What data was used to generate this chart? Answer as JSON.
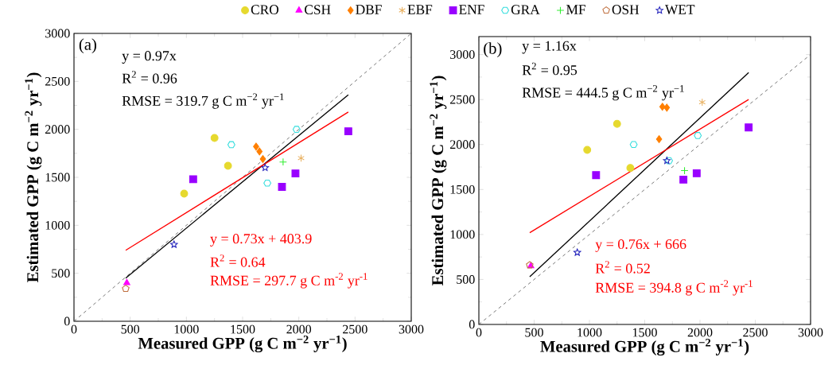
{
  "chart_data": [
    {
      "type": "scatter",
      "xlabel": "Measured GPP  (g C m$^{−2}$ yr$^{−1}$)",
      "ylabel": "Estimated GPP  (g C m$^{−2}$ yr$^{−1}$)",
      "xlim": [
        0,
        3000
      ],
      "ylim": [
        0,
        3000
      ],
      "xticks": [
        0,
        500,
        1000,
        1500,
        2000,
        2500,
        3000
      ],
      "yticks": [
        0,
        500,
        1000,
        1500,
        2000,
        2500,
        3000
      ],
      "legend": "top",
      "annotations": [
        "(a)",
        "y = 0.97x",
        "R$^{2}$ = 0.96",
        "RMSE = 319.7 g C m$^{−2}$ yr$^{−1}$",
        "y = 0.73x + 403.9",
        "R$^{2}$ = 0.64",
        "RMSE = 297.7 g C m$^{-2}$ yr$^{-1}$"
      ],
      "series": [
        {
          "name": "CRO",
          "color": "#e6d92e",
          "marker": "circle",
          "x": [
            1250,
            1370,
            980
          ],
          "values": [
            1910,
            1620,
            1330
          ]
        },
        {
          "name": "CSH",
          "color": "#ff00ff",
          "marker": "triangle",
          "x": [
            470
          ],
          "values": [
            400
          ]
        },
        {
          "name": "DBF",
          "color": "#ff7f00",
          "marker": "diamond",
          "x": [
            1620,
            1650,
            1680
          ],
          "values": [
            1820,
            1770,
            1690
          ]
        },
        {
          "name": "EBF",
          "color": "#e8b060",
          "marker": "cross",
          "x": [
            2020
          ],
          "values": [
            1700
          ]
        },
        {
          "name": "ENF",
          "color": "#9900ff",
          "marker": "square",
          "x": [
            2440,
            1060,
            1970,
            1850
          ],
          "values": [
            1980,
            1480,
            1540,
            1400
          ]
        },
        {
          "name": "GRA",
          "color": "#33dddd",
          "x": [
            1980,
            1400,
            1720
          ],
          "values": [
            2000,
            1840,
            1440
          ]
        },
        {
          "name": "MF",
          "color": "#33ee33",
          "marker": "cross",
          "x": [
            1860
          ],
          "values": [
            1660
          ]
        },
        {
          "name": "OSH",
          "color": "#c07040",
          "x": [
            460
          ],
          "values": [
            340
          ]
        },
        {
          "name": "WET",
          "color": "#2222bb",
          "marker": "star",
          "x": [
            1700,
            890
          ],
          "values": [
            1600,
            800
          ]
        },
        {
          "type": "line",
          "color": "#555555",
          "line_style": "dashed",
          "x": [
            0,
            3000
          ],
          "values": [
            0,
            3000
          ]
        },
        {
          "type": "line",
          "color": "#000000",
          "line_style": "solid",
          "x": [
            460,
            2440
          ],
          "values": [
            450,
            2360
          ]
        },
        {
          "type": "line",
          "color": "#ff0000",
          "line_style": "solid",
          "x": [
            460,
            2440
          ],
          "values": [
            740,
            2180
          ]
        }
      ]
    },
    {
      "type": "scatter",
      "xlabel": "Measured GPP  (g C m$^{−2}$ yr$^{−1}$)",
      "ylabel": "Estimated GPP  (g C m$^{−2}$ yr$^{−1}$)",
      "xlim": [
        0,
        3000
      ],
      "ylim": [
        0,
        3200
      ],
      "xticks": [
        0,
        500,
        1000,
        1500,
        2000,
        2500,
        3000
      ],
      "yticks": [
        0,
        500,
        1000,
        1500,
        2000,
        2500,
        3000
      ],
      "annotations": [
        "(b)",
        "y = 1.16x",
        "R$^{2}$ = 0.95",
        "RMSE = 444.5 g C m$^{−2}$ yr$^{−1}$",
        "y = 0.76x + 666",
        "R$^{2}$ = 0.52",
        "RMSE = 394.8 g C m$^{-2}$ yr$^{-1}$"
      ],
      "series": [
        {
          "color": "#e6d92e",
          "marker": "circle",
          "x": [
            1250,
            1370,
            980
          ],
          "values": [
            2230,
            1740,
            1940
          ]
        },
        {
          "color": "#ff00ff",
          "marker": "triangle",
          "x": [
            470
          ],
          "values": [
            650
          ]
        },
        {
          "color": "#ff7f00",
          "marker": "diamond",
          "x": [
            1660,
            1700,
            1630
          ],
          "values": [
            2420,
            2410,
            2060
          ]
        },
        {
          "color": "#e8b060",
          "marker": "cross",
          "x": [
            2020
          ],
          "values": [
            2470
          ]
        },
        {
          "color": "#9900ff",
          "marker": "square",
          "x": [
            2440,
            1060,
            1970,
            1850
          ],
          "values": [
            2190,
            1660,
            1680,
            1610
          ]
        },
        {
          "color": "#33dddd",
          "x": [
            1980,
            1400,
            1720
          ],
          "values": [
            2100,
            2000,
            1820
          ]
        },
        {
          "color": "#33ee33",
          "marker": "cross",
          "x": [
            1860
          ],
          "values": [
            1710
          ]
        },
        {
          "color": "#c07040",
          "x": [
            460
          ],
          "values": [
            660
          ]
        },
        {
          "color": "#2222bb",
          "marker": "star",
          "x": [
            1700,
            890
          ],
          "values": [
            1820,
            800
          ]
        },
        {
          "type": "line",
          "color": "#555555",
          "line_style": "dashed",
          "x": [
            0,
            3000
          ],
          "values": [
            0,
            3000
          ]
        },
        {
          "type": "line",
          "color": "#000000",
          "line_style": "solid",
          "x": [
            460,
            2440
          ],
          "values": [
            530,
            2800
          ]
        },
        {
          "type": "line",
          "color": "#ff0000",
          "line_style": "solid",
          "x": [
            460,
            2440
          ],
          "values": [
            1020,
            2500
          ]
        }
      ]
    }
  ]
}
